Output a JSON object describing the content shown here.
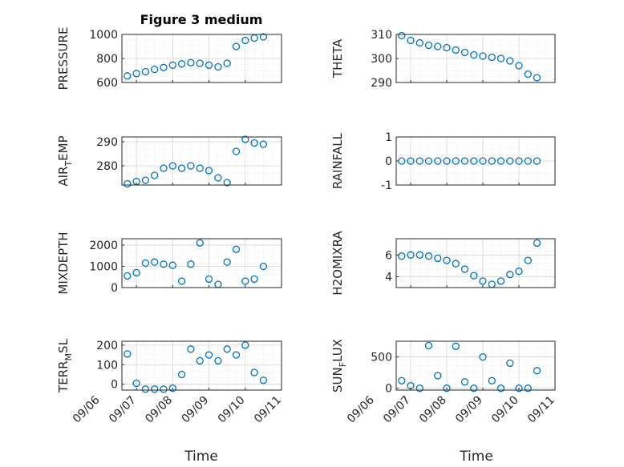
{
  "title": "Figure 3 medium",
  "marker_color": "#0072BD",
  "x_ticks": [
    "09/06",
    "09/07",
    "09/08",
    "09/09",
    "09/10",
    "09/11"
  ],
  "chart_data": [
    {
      "type": "scatter",
      "ylabel": "PRESSURE",
      "ylim": [
        600,
        1000
      ],
      "yticks": [
        "600",
        "800",
        "1000"
      ],
      "x": [
        "09/06 18:00",
        "09/07 00:00",
        "09/07 06:00",
        "09/07 12:00",
        "09/07 18:00",
        "09/08 00:00",
        "09/08 06:00",
        "09/08 12:00",
        "09/08 18:00",
        "09/09 00:00",
        "09/09 06:00",
        "09/09 12:00",
        "09/09 18:00",
        "09/10 00:00",
        "09/10 06:00",
        "09/10 12:00"
      ],
      "y": [
        655,
        675,
        690,
        710,
        725,
        745,
        755,
        765,
        760,
        745,
        730,
        760,
        900,
        950,
        970,
        980
      ]
    },
    {
      "type": "scatter",
      "ylabel": "THETA",
      "ylim": [
        290,
        310
      ],
      "yticks": [
        "290",
        "300",
        "310"
      ],
      "x": [
        "09/06 18:00",
        "09/07 00:00",
        "09/07 06:00",
        "09/07 12:00",
        "09/07 18:00",
        "09/08 00:00",
        "09/08 06:00",
        "09/08 12:00",
        "09/08 18:00",
        "09/09 00:00",
        "09/09 06:00",
        "09/09 12:00",
        "09/09 18:00",
        "09/10 00:00",
        "09/10 06:00",
        "09/10 12:00"
      ],
      "y": [
        309.5,
        307.5,
        306.5,
        305.5,
        305,
        304.5,
        303.5,
        302.5,
        301.5,
        301,
        300.5,
        300,
        299,
        297,
        293.5,
        292
      ]
    },
    {
      "type": "scatter",
      "ylabel": "AIR_TEMP",
      "ylim": [
        272,
        292
      ],
      "yticks": [
        "280",
        "290"
      ],
      "x": [
        "09/06 18:00",
        "09/07 00:00",
        "09/07 06:00",
        "09/07 12:00",
        "09/07 18:00",
        "09/08 00:00",
        "09/08 06:00",
        "09/08 12:00",
        "09/08 18:00",
        "09/09 00:00",
        "09/09 06:00",
        "09/09 12:00",
        "09/09 18:00",
        "09/10 00:00",
        "09/10 06:00",
        "09/10 12:00"
      ],
      "y": [
        272.5,
        273.5,
        274,
        276,
        279,
        280,
        279,
        280,
        279,
        278,
        275,
        273,
        286,
        291,
        289.5,
        289
      ]
    },
    {
      "type": "scatter",
      "ylabel": "RAINFALL",
      "ylim": [
        -1,
        1
      ],
      "yticks": [
        "-1",
        "0",
        "1"
      ],
      "x": [
        "09/06 18:00",
        "09/07 00:00",
        "09/07 06:00",
        "09/07 12:00",
        "09/07 18:00",
        "09/08 00:00",
        "09/08 06:00",
        "09/08 12:00",
        "09/08 18:00",
        "09/09 00:00",
        "09/09 06:00",
        "09/09 12:00",
        "09/09 18:00",
        "09/10 00:00",
        "09/10 06:00",
        "09/10 12:00"
      ],
      "y": [
        0,
        0,
        0,
        0,
        0,
        0,
        0,
        0,
        0,
        0,
        0,
        0,
        0,
        0,
        0,
        0
      ]
    },
    {
      "type": "scatter",
      "ylabel": "MIXDEPTH",
      "ylim": [
        0,
        2300
      ],
      "yticks": [
        "0",
        "1000",
        "2000"
      ],
      "x": [
        "09/06 18:00",
        "09/07 00:00",
        "09/07 06:00",
        "09/07 12:00",
        "09/07 18:00",
        "09/08 00:00",
        "09/08 06:00",
        "09/08 12:00",
        "09/08 18:00",
        "09/09 00:00",
        "09/09 06:00",
        "09/09 12:00",
        "09/09 18:00",
        "09/10 00:00",
        "09/10 06:00",
        "09/10 12:00"
      ],
      "y": [
        550,
        700,
        1150,
        1200,
        1100,
        1050,
        300,
        1100,
        2100,
        400,
        150,
        1200,
        1800,
        300,
        400,
        1000
      ]
    },
    {
      "type": "scatter",
      "ylabel": "H2OMIXRA",
      "ylim": [
        3,
        7.5
      ],
      "yticks": [
        "4",
        "6"
      ],
      "x": [
        "09/06 18:00",
        "09/07 00:00",
        "09/07 06:00",
        "09/07 12:00",
        "09/07 18:00",
        "09/08 00:00",
        "09/08 06:00",
        "09/08 12:00",
        "09/08 18:00",
        "09/09 00:00",
        "09/09 06:00",
        "09/09 12:00",
        "09/09 18:00",
        "09/10 00:00",
        "09/10 06:00",
        "09/10 12:00"
      ],
      "y": [
        5.9,
        6,
        6,
        5.9,
        5.7,
        5.5,
        5.2,
        4.7,
        4.1,
        3.6,
        3.3,
        3.6,
        4.2,
        4.5,
        5.5,
        7.1
      ]
    },
    {
      "type": "scatter",
      "ylabel": "TERR_MSL",
      "ylim": [
        -30,
        220
      ],
      "yticks": [
        "0",
        "100",
        "200"
      ],
      "x": [
        "09/06 18:00",
        "09/07 00:00",
        "09/07 06:00",
        "09/07 12:00",
        "09/07 18:00",
        "09/08 00:00",
        "09/08 06:00",
        "09/08 12:00",
        "09/08 18:00",
        "09/09 00:00",
        "09/09 06:00",
        "09/09 12:00",
        "09/09 18:00",
        "09/10 00:00",
        "09/10 06:00",
        "09/10 12:00"
      ],
      "y": [
        155,
        5,
        -25,
        -25,
        -25,
        -20,
        50,
        180,
        120,
        150,
        120,
        180,
        150,
        200,
        60,
        20
      ]
    },
    {
      "type": "scatter",
      "ylabel": "SUN_FLUX",
      "ylim": [
        -30,
        750
      ],
      "yticks": [
        "0",
        "500"
      ],
      "x": [
        "09/06 18:00",
        "09/07 00:00",
        "09/07 06:00",
        "09/07 12:00",
        "09/07 18:00",
        "09/08 00:00",
        "09/08 06:00",
        "09/08 12:00",
        "09/08 18:00",
        "09/09 00:00",
        "09/09 06:00",
        "09/09 12:00",
        "09/09 18:00",
        "09/10 00:00",
        "09/10 06:00",
        "09/10 12:00"
      ],
      "y": [
        120,
        40,
        0,
        680,
        200,
        0,
        670,
        100,
        0,
        500,
        120,
        0,
        400,
        0,
        0,
        280
      ]
    }
  ],
  "xlabels": [
    "Time",
    "Time"
  ]
}
